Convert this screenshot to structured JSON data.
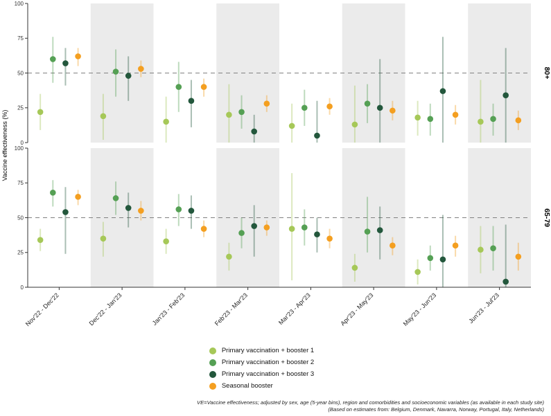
{
  "chart_data": {
    "type": "scatter",
    "title": "",
    "xlabel": "",
    "ylabel": "Vaccine effectiveness (%)",
    "ylim": [
      0,
      100
    ],
    "yticks": [
      0,
      25,
      50,
      75,
      100
    ],
    "reference_line": 50,
    "grid": "off",
    "legend_position": "bottom",
    "categories": [
      "Nov'22 - Dec'22",
      "Dec'22 - Jan'23",
      "Jan'23 - Feb'23",
      "Feb'23 - Mar'23",
      "Mar'23 - Apr'23",
      "Apr'23 - May'23",
      "May'23 - Jun'23",
      "Jun'23 - Jul'23"
    ],
    "facets": [
      {
        "label": "80+",
        "series": [
          {
            "name": "Primary vaccination + booster 1",
            "color": "#a6c858",
            "values": [
              22,
              19,
              15,
              20,
              12,
              13,
              18,
              15
            ],
            "ci_low": [
              9,
              2,
              0,
              0,
              0,
              0,
              5,
              0
            ],
            "ci_high": [
              35,
              35,
              33,
              42,
              28,
              41,
              30,
              45
            ]
          },
          {
            "name": "Primary vaccination + booster 2",
            "color": "#55a054",
            "values": [
              60,
              51,
              40,
              22,
              25,
              28,
              17,
              17
            ],
            "ci_low": [
              43,
              33,
              22,
              10,
              12,
              14,
              5,
              5
            ],
            "ci_high": [
              76,
              67,
              58,
              34,
              38,
              42,
              28,
              28
            ]
          },
          {
            "name": "Primary vaccination + booster 3",
            "color": "#23573c",
            "values": [
              57,
              48,
              30,
              8,
              5,
              25,
              37,
              34
            ],
            "ci_low": [
              41,
              30,
              11,
              0,
              0,
              0,
              0,
              0
            ],
            "ci_high": [
              68,
              62,
              45,
              20,
              30,
              60,
              76,
              68
            ]
          },
          {
            "name": "Seasonal booster",
            "color": "#f49f20",
            "values": [
              62,
              53,
              40,
              28,
              26,
              23,
              20,
              16
            ],
            "ci_low": [
              55,
              47,
              33,
              22,
              20,
              16,
              13,
              9
            ],
            "ci_high": [
              68,
              59,
              46,
              34,
              32,
              30,
              27,
              23
            ]
          }
        ]
      },
      {
        "label": "65-79",
        "series": [
          {
            "name": "Primary vaccination + booster 1",
            "color": "#a6c858",
            "values": [
              34,
              35,
              33,
              22,
              42,
              14,
              11,
              27
            ],
            "ci_low": [
              26,
              22,
              24,
              12,
              5,
              4,
              2,
              10
            ],
            "ci_high": [
              42,
              47,
              42,
              32,
              82,
              24,
              20,
              44
            ]
          },
          {
            "name": "Primary vaccination + booster 2",
            "color": "#55a054",
            "values": [
              68,
              64,
              56,
              39,
              43,
              40,
              21,
              28
            ],
            "ci_low": [
              58,
              52,
              44,
              28,
              30,
              25,
              12,
              12
            ],
            "ci_high": [
              77,
              76,
              67,
              50,
              56,
              65,
              30,
              44
            ]
          },
          {
            "name": "Primary vaccination + booster 3",
            "color": "#23573c",
            "values": [
              54,
              57,
              55,
              44,
              38,
              41,
              20,
              4
            ],
            "ci_low": [
              24,
              43,
              42,
              22,
              25,
              20,
              0,
              0
            ],
            "ci_high": [
              72,
              68,
              66,
              59,
              50,
              58,
              52,
              45
            ]
          },
          {
            "name": "Seasonal booster",
            "color": "#f49f20",
            "values": [
              65,
              55,
              42,
              43,
              35,
              30,
              30,
              22
            ],
            "ci_low": [
              59,
              48,
              36,
              37,
              28,
              23,
              22,
              12
            ],
            "ci_high": [
              70,
              62,
              48,
              48,
              42,
              36,
              37,
              32
            ]
          }
        ]
      }
    ]
  },
  "colors": {
    "band": "#ebebeb",
    "reference_line": "#808080",
    "axis": "#333333",
    "tick_label": "#333333"
  },
  "footnote": {
    "line1": "VE=Vaccine effectiveness; adjusted by sex, age (5-year bins), region and comorbidities and socioeconomic variables (as available in each study site)",
    "line2": "(Based on estimates from: Belgium, Denmark, Navarra, Norway, Portugal, Italy, Netherlands)"
  }
}
